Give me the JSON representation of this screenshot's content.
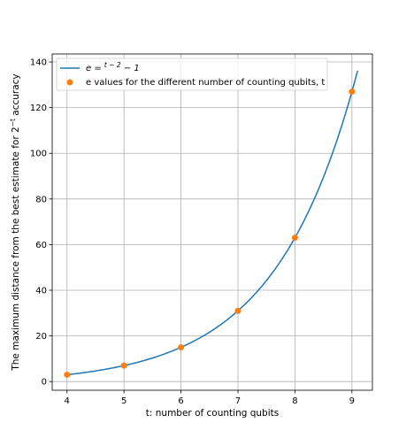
{
  "chart_data": {
    "type": "line",
    "xlabel": "t: number of counting qubits",
    "ylabel_parts": {
      "before": "The maximum distance from the best estimate for 2",
      "superscript": "−t",
      "after": " accuracy"
    },
    "xlim": [
      3.74,
      9.36
    ],
    "ylim": [
      -3.8,
      143.5
    ],
    "xticks": [
      4,
      5,
      6,
      7,
      8,
      9
    ],
    "yticks": [
      0,
      20,
      40,
      60,
      80,
      100,
      120,
      140
    ],
    "grid": true,
    "legend_position": "top-left",
    "series": [
      {
        "name_parts": {
          "base": "e = ",
          "superscript": "t − 2",
          "after": " − 1"
        },
        "type": "line",
        "color": "#1f77b4",
        "function": "2^(t-2) - 1",
        "x_range": [
          4,
          9.1
        ]
      },
      {
        "name": "e values for the different number of counting qubits, t",
        "type": "scatter",
        "color": "#ff7f0e",
        "x": [
          4,
          5,
          6,
          7,
          8,
          9
        ],
        "y": [
          3,
          7,
          15,
          31,
          63,
          127
        ]
      }
    ]
  }
}
